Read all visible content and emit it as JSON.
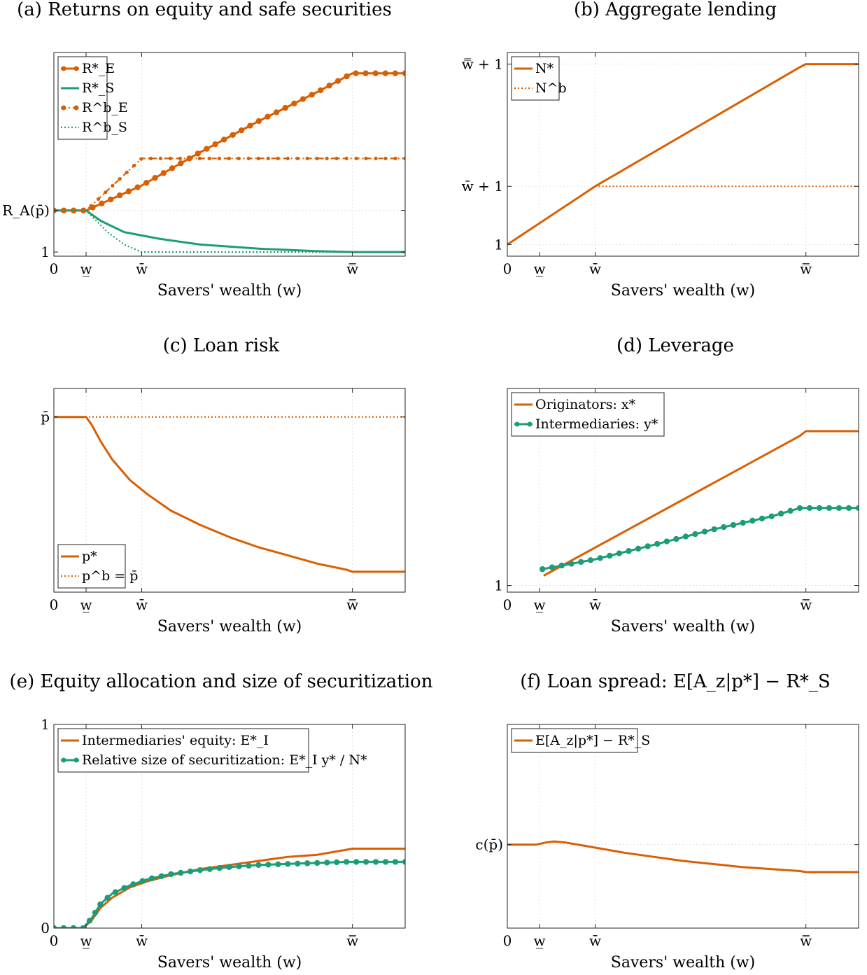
{
  "colors": {
    "orange": "#d95f02",
    "green": "#1b9e77",
    "frame": "#222222"
  },
  "xlabel": "Savers' wealth (w)",
  "chart_data": [
    {
      "id": "a",
      "type": "line",
      "title": "(a) Returns on equity and safe securities",
      "xlabel": "Savers' wealth (w)",
      "xlim": [
        0,
        6
      ],
      "ylim": [
        0.9,
        5.8
      ],
      "xticks": [
        {
          "v": 0,
          "label": "0"
        },
        {
          "v": 0.55,
          "label": "w̲"
        },
        {
          "v": 1.5,
          "label": "w̄"
        },
        {
          "v": 5.1,
          "label": "w̿"
        }
      ],
      "yticks": [
        {
          "v": 1,
          "label": "1"
        },
        {
          "v": 2,
          "label": "R_A(p̄)"
        }
      ],
      "legend": "top-left",
      "series": [
        {
          "name": "R*_E",
          "color": "orange",
          "style": "solid",
          "markers": true,
          "x": [
            0,
            0.55,
            1.5,
            2.5,
            3.5,
            4.5,
            5.1,
            6
          ],
          "y": [
            2,
            2,
            2.6,
            3.4,
            4.15,
            4.85,
            5.3,
            5.3
          ]
        },
        {
          "name": "R*_S",
          "color": "green",
          "style": "solid",
          "markers": false,
          "x": [
            0,
            0.55,
            0.8,
            1.2,
            1.8,
            2.5,
            3.5,
            4.5,
            5.1,
            6
          ],
          "y": [
            2,
            2,
            1.75,
            1.48,
            1.32,
            1.18,
            1.08,
            1.02,
            1.0,
            1.0
          ]
        },
        {
          "name": "R^b_E",
          "color": "orange",
          "style": "dashdot",
          "markers": true,
          "x": [
            0,
            0.55,
            1.5,
            6
          ],
          "y": [
            2,
            2,
            3.25,
            3.25
          ]
        },
        {
          "name": "R^b_S",
          "color": "green",
          "style": "dotted",
          "markers": false,
          "x": [
            0,
            0.55,
            0.9,
            1.2,
            1.5,
            6
          ],
          "y": [
            2,
            2,
            1.5,
            1.18,
            1.0,
            1.0
          ]
        }
      ]
    },
    {
      "id": "b",
      "type": "line",
      "title": "(b) Aggregate lending",
      "xlabel": "Savers' wealth (w)",
      "xlim": [
        0,
        6
      ],
      "ylim": [
        0.8,
        4.3
      ],
      "xticks": [
        {
          "v": 0,
          "label": "0"
        },
        {
          "v": 0.55,
          "label": "w̲"
        },
        {
          "v": 1.5,
          "label": "w̄"
        },
        {
          "v": 5.1,
          "label": "w̿"
        }
      ],
      "yticks": [
        {
          "v": 1,
          "label": "1"
        },
        {
          "v": 2.0,
          "label": "w̄ + 1"
        },
        {
          "v": 4.1,
          "label": "w̿ + 1"
        }
      ],
      "legend": "top-left",
      "series": [
        {
          "name": "N*",
          "color": "orange",
          "style": "solid",
          "markers": false,
          "x": [
            0,
            1.5,
            5.0,
            5.1,
            6
          ],
          "y": [
            1,
            2.0,
            4.05,
            4.1,
            4.1
          ]
        },
        {
          "name": "N^b",
          "color": "orange",
          "style": "dotted",
          "markers": false,
          "x": [
            1.5,
            6
          ],
          "y": [
            2.0,
            2.0
          ]
        }
      ]
    },
    {
      "id": "c",
      "type": "line",
      "title": "(c) Loan risk",
      "xlabel": "Savers' wealth (w)",
      "xlim": [
        0,
        6
      ],
      "ylim": [
        0.0,
        1.0
      ],
      "xticks": [
        {
          "v": 0,
          "label": "0"
        },
        {
          "v": 0.55,
          "label": "w̲"
        },
        {
          "v": 1.5,
          "label": "w̄"
        },
        {
          "v": 5.1,
          "label": "w̿"
        }
      ],
      "yticks": [
        {
          "v": 0.86,
          "label": "p̄"
        }
      ],
      "legend": "bottom-left",
      "series": [
        {
          "name": "p*",
          "color": "orange",
          "style": "solid",
          "markers": false,
          "x": [
            0,
            0.55,
            0.65,
            0.8,
            1.0,
            1.3,
            1.6,
            2.0,
            2.5,
            3.0,
            3.5,
            4.0,
            4.5,
            5.0,
            5.1,
            6
          ],
          "y": [
            0.86,
            0.86,
            0.82,
            0.74,
            0.65,
            0.55,
            0.48,
            0.4,
            0.33,
            0.27,
            0.22,
            0.18,
            0.14,
            0.11,
            0.1,
            0.1
          ]
        },
        {
          "name": "p^b = p̄",
          "color": "orange",
          "style": "dotted",
          "markers": false,
          "x": [
            0,
            6
          ],
          "y": [
            0.86,
            0.86
          ]
        }
      ]
    },
    {
      "id": "d",
      "type": "line",
      "title": "(d) Leverage",
      "xlabel": "Savers' wealth (w)",
      "xlim": [
        0,
        6
      ],
      "ylim": [
        0.9,
        4.0
      ],
      "xticks": [
        {
          "v": 0,
          "label": "0"
        },
        {
          "v": 0.55,
          "label": "w̲"
        },
        {
          "v": 1.5,
          "label": "w̄"
        },
        {
          "v": 5.1,
          "label": "w̿"
        }
      ],
      "yticks": [
        {
          "v": 1,
          "label": "1"
        }
      ],
      "legend": "top-left",
      "series": [
        {
          "name": "Originators: x*",
          "color": "orange",
          "style": "solid",
          "markers": false,
          "x": [
            0.62,
            5.0,
            5.1,
            6
          ],
          "y": [
            1.15,
            3.28,
            3.35,
            3.35
          ]
        },
        {
          "name": "Intermediaries: y*",
          "color": "green",
          "style": "solid",
          "markers": true,
          "x": [
            0.6,
            1.5,
            2.5,
            3.5,
            4.5,
            5.0,
            6
          ],
          "y": [
            1.25,
            1.4,
            1.62,
            1.85,
            2.05,
            2.18,
            2.18
          ]
        }
      ]
    },
    {
      "id": "e",
      "type": "line",
      "title": "(e) Equity allocation and size of securitization",
      "xlabel": "Savers' wealth (w)",
      "xlim": [
        0,
        6
      ],
      "ylim": [
        0,
        1
      ],
      "xticks": [
        {
          "v": 0,
          "label": "0"
        },
        {
          "v": 0.55,
          "label": "w̲"
        },
        {
          "v": 1.5,
          "label": "w̄"
        },
        {
          "v": 5.1,
          "label": "w̿"
        }
      ],
      "yticks": [
        {
          "v": 0,
          "label": "0"
        },
        {
          "v": 1,
          "label": "1"
        }
      ],
      "legend": "top-left",
      "series": [
        {
          "name": "Intermediaries' equity: E*_I",
          "color": "orange",
          "style": "solid",
          "markers": false,
          "x": [
            0,
            0.5,
            0.65,
            0.8,
            1.0,
            1.3,
            1.6,
            2.0,
            2.5,
            3.0,
            3.5,
            4.0,
            4.5,
            5.0,
            5.1,
            6
          ],
          "y": [
            0,
            0,
            0.04,
            0.1,
            0.15,
            0.2,
            0.23,
            0.26,
            0.29,
            0.31,
            0.33,
            0.35,
            0.36,
            0.385,
            0.39,
            0.39
          ]
        },
        {
          "name": "Relative size of securitization: E*_I y* / N*",
          "color": "green",
          "style": "solid",
          "markers": true,
          "x": [
            0,
            0.5,
            0.65,
            0.8,
            1.0,
            1.3,
            1.6,
            2.0,
            2.5,
            3.0,
            3.5,
            4.0,
            4.5,
            5.0,
            5.1,
            6
          ],
          "y": [
            0,
            0,
            0.05,
            0.12,
            0.17,
            0.21,
            0.24,
            0.265,
            0.285,
            0.3,
            0.31,
            0.315,
            0.32,
            0.325,
            0.325,
            0.325
          ]
        }
      ]
    },
    {
      "id": "f",
      "type": "line",
      "title": "(f) Loan spread: E[A_z|p*] − R*_S",
      "xlabel": "Savers' wealth (w)",
      "xlim": [
        0,
        6
      ],
      "ylim": [
        0,
        1
      ],
      "xticks": [
        {
          "v": 0,
          "label": "0"
        },
        {
          "v": 0.55,
          "label": "w̲"
        },
        {
          "v": 1.5,
          "label": "w̄"
        },
        {
          "v": 5.1,
          "label": "w̿"
        }
      ],
      "yticks": [
        {
          "v": 0.41,
          "label": "c(p̄)"
        }
      ],
      "legend": "top-left",
      "series": [
        {
          "name": "E[A_z|p*] − R*_S",
          "color": "orange",
          "style": "solid",
          "markers": false,
          "x": [
            0,
            0.5,
            0.65,
            0.8,
            1.0,
            1.3,
            1.6,
            2.0,
            2.5,
            3.0,
            3.5,
            4.0,
            4.5,
            5.0,
            5.1,
            6
          ],
          "y": [
            0.41,
            0.41,
            0.42,
            0.425,
            0.42,
            0.405,
            0.39,
            0.37,
            0.35,
            0.33,
            0.315,
            0.3,
            0.29,
            0.28,
            0.275,
            0.275
          ]
        }
      ]
    }
  ]
}
